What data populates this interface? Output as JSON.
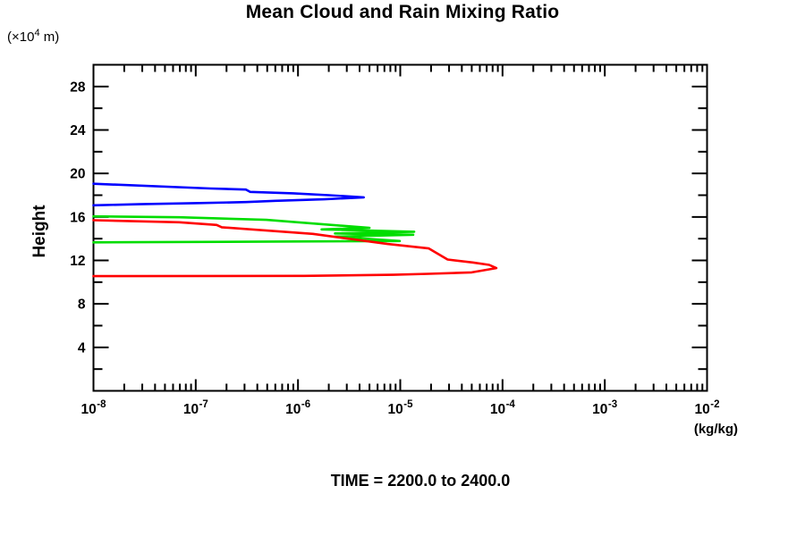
{
  "page": {
    "background": "#ffffff"
  },
  "title": "Mean Cloud and Rain Mixing Ratio",
  "y_units": {
    "prefix": "(×10",
    "exponent": "4",
    "suffix": " m)"
  },
  "footer": {
    "time_label": "TIME = 2200.0 to 2400.0"
  },
  "chart_data": {
    "type": "line",
    "title": "Mean Cloud and Rain Mixing Ratio",
    "xlabel": "(kg/kg)",
    "ylabel": "Height",
    "y_units": "×10^4 m",
    "x_scale": "log",
    "xlim": [
      1e-08,
      0.01
    ],
    "ylim": [
      0,
      30
    ],
    "grid": false,
    "legend": "none",
    "axis_color": "#000000",
    "x_tick_base": "10",
    "x_major_tick_exponents": [
      -8,
      -7,
      -6,
      -5,
      -4,
      -3,
      -2
    ],
    "x_minor_tick_multipliers": [
      2,
      3,
      4,
      5,
      6,
      7,
      8,
      9
    ],
    "y_major_ticks": [
      4,
      8,
      12,
      16,
      20,
      24,
      28
    ],
    "y_minor_ticks": [
      2,
      6,
      10,
      14,
      18,
      22,
      26
    ],
    "annotation": "TIME = 2200.0 to 2400.0",
    "series": [
      {
        "name": "blue-profile",
        "color": "#0000ff",
        "points_vh": [
          [
            1e-08,
            19.05
          ],
          [
            1.4e-07,
            18.62
          ],
          [
            3.1e-07,
            18.52
          ],
          [
            3.4e-07,
            18.3
          ],
          [
            9e-07,
            18.17
          ],
          [
            2e-06,
            18.0
          ],
          [
            4.4e-06,
            17.8
          ],
          [
            1.8e-06,
            17.62
          ],
          [
            6e-07,
            17.48
          ],
          [
            3.1e-07,
            17.37
          ],
          [
            1.1e-07,
            17.28
          ],
          [
            2.8e-08,
            17.17
          ],
          [
            1e-08,
            17.07
          ]
        ]
      },
      {
        "name": "green-profile",
        "color": "#00dd00",
        "points_vh": [
          [
            1e-08,
            16.05
          ],
          [
            6.9e-08,
            15.97
          ],
          [
            4.9e-07,
            15.73
          ],
          [
            5e-06,
            14.99
          ],
          [
            1.7e-06,
            14.85
          ],
          [
            1.37e-05,
            14.64
          ],
          [
            2.3e-06,
            14.48
          ],
          [
            1.34e-05,
            14.36
          ],
          [
            2.3e-06,
            14.19
          ],
          [
            9.9e-06,
            13.78
          ],
          [
            1e-08,
            13.66
          ]
        ]
      },
      {
        "name": "red-profile",
        "color": "#ff0000",
        "points_vh": [
          [
            1e-08,
            15.7
          ],
          [
            6.9e-08,
            15.51
          ],
          [
            1.6e-07,
            15.26
          ],
          [
            1.8e-07,
            15.05
          ],
          [
            1.4e-06,
            14.44
          ],
          [
            7.5e-06,
            13.51
          ],
          [
            1.9e-05,
            13.1
          ],
          [
            2.9e-05,
            12.08
          ],
          [
            5.1e-05,
            11.81
          ],
          [
            7.4e-05,
            11.59
          ],
          [
            8.7e-05,
            11.29
          ],
          [
            5e-05,
            10.9
          ],
          [
            1.9e-05,
            10.77
          ],
          [
            8.6e-06,
            10.68
          ],
          [
            1.15e-06,
            10.58
          ],
          [
            1e-08,
            10.55
          ]
        ]
      }
    ]
  }
}
